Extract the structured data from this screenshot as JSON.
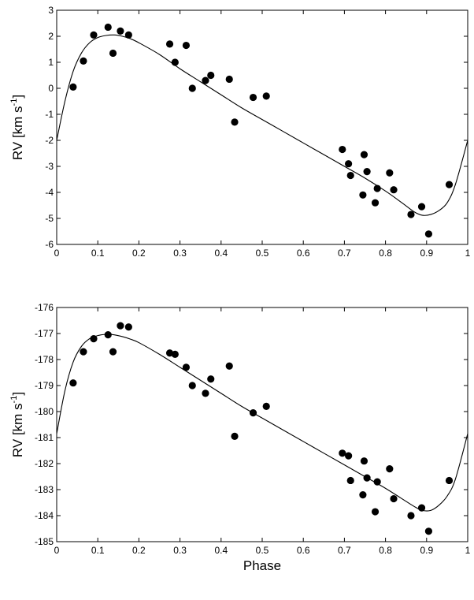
{
  "chart_data": [
    {
      "type": "scatter",
      "xlabel": "",
      "ylabel": {
        "prefix": "RV [km s",
        "superscript": "-1",
        "suffix": "]"
      },
      "xlim": [
        0,
        1
      ],
      "ylim": [
        -6,
        3
      ],
      "x_ticks": [
        0,
        0.1,
        0.2,
        0.3,
        0.4,
        0.5,
        0.6,
        0.7,
        0.8,
        0.9,
        1
      ],
      "x_tick_labels": [
        "0",
        "0.1",
        "0.2",
        "0.3",
        "0.4",
        "0.5",
        "0.6",
        "0.7",
        "0.8",
        "0.9",
        "1"
      ],
      "y_ticks": [
        -6,
        -5,
        -4,
        -3,
        -2,
        -1,
        0,
        1,
        2,
        3
      ],
      "y_tick_labels": [
        "-6",
        "-5",
        "-4",
        "-3",
        "-2",
        "-1",
        "0",
        "1",
        "2",
        "3"
      ],
      "grid": false,
      "series": [
        {
          "kind": "points",
          "x": [
            0.04,
            0.065,
            0.09,
            0.125,
            0.137,
            0.155,
            0.175,
            0.275,
            0.288,
            0.315,
            0.33,
            0.362,
            0.375,
            0.42,
            0.433,
            0.478,
            0.51,
            0.695,
            0.71,
            0.715,
            0.745,
            0.748,
            0.755,
            0.775,
            0.78,
            0.81,
            0.82,
            0.862,
            0.888,
            0.905,
            0.955
          ],
          "y": [
            0.05,
            1.05,
            2.05,
            2.35,
            1.35,
            2.2,
            2.05,
            1.7,
            1.0,
            1.65,
            0.0,
            0.3,
            0.5,
            0.35,
            -1.3,
            -0.35,
            -0.3,
            -2.35,
            -2.9,
            -3.35,
            -4.1,
            -2.55,
            -3.2,
            -4.4,
            -3.85,
            -3.25,
            -3.9,
            -4.85,
            -4.55,
            -5.6,
            -3.7
          ]
        },
        {
          "kind": "curve",
          "x": [
            0,
            0.02,
            0.04,
            0.06,
            0.08,
            0.1,
            0.12,
            0.14,
            0.16,
            0.18,
            0.2,
            0.25,
            0.3,
            0.35,
            0.4,
            0.45,
            0.5,
            0.55,
            0.6,
            0.65,
            0.7,
            0.75,
            0.8,
            0.84,
            0.87,
            0.89,
            0.91,
            0.93,
            0.95,
            0.97,
            1.0
          ],
          "y": [
            -2.0,
            -0.5,
            0.65,
            1.35,
            1.75,
            1.95,
            2.03,
            2.05,
            2.0,
            1.9,
            1.75,
            1.3,
            0.75,
            0.25,
            -0.25,
            -0.75,
            -1.2,
            -1.65,
            -2.1,
            -2.55,
            -3.0,
            -3.45,
            -3.95,
            -4.4,
            -4.75,
            -4.88,
            -4.85,
            -4.7,
            -4.4,
            -3.7,
            -2.0
          ]
        }
      ]
    },
    {
      "type": "scatter",
      "xlabel": "Phase",
      "ylabel": {
        "prefix": "RV [km s",
        "superscript": "-1",
        "suffix": "]"
      },
      "xlim": [
        0,
        1
      ],
      "ylim": [
        -185,
        -176
      ],
      "x_ticks": [
        0,
        0.1,
        0.2,
        0.3,
        0.4,
        0.5,
        0.6,
        0.7,
        0.8,
        0.9,
        1
      ],
      "x_tick_labels": [
        "0",
        "0.1",
        "0.2",
        "0.3",
        "0.4",
        "0.5",
        "0.6",
        "0.7",
        "0.8",
        "0.9",
        "1"
      ],
      "y_ticks": [
        -185,
        -184,
        -183,
        -182,
        -181,
        -180,
        -179,
        -178,
        -177,
        -176
      ],
      "y_tick_labels": [
        "-185",
        "-184",
        "-183",
        "-182",
        "-181",
        "-180",
        "-179",
        "-178",
        "-177",
        "-176"
      ],
      "grid": false,
      "series": [
        {
          "kind": "points",
          "x": [
            0.04,
            0.065,
            0.09,
            0.125,
            0.137,
            0.155,
            0.175,
            0.275,
            0.288,
            0.315,
            0.33,
            0.362,
            0.375,
            0.42,
            0.433,
            0.478,
            0.51,
            0.695,
            0.71,
            0.715,
            0.745,
            0.748,
            0.755,
            0.775,
            0.78,
            0.81,
            0.82,
            0.862,
            0.888,
            0.905,
            0.955
          ],
          "y": [
            -178.9,
            -177.7,
            -177.2,
            -177.05,
            -177.7,
            -176.7,
            -176.75,
            -177.75,
            -177.8,
            -178.3,
            -179.0,
            -179.3,
            -178.75,
            -178.25,
            -180.95,
            -180.05,
            -179.8,
            -181.6,
            -181.7,
            -182.65,
            -183.2,
            -181.9,
            -182.55,
            -183.85,
            -182.7,
            -182.2,
            -183.35,
            -184.0,
            -183.7,
            -184.6,
            -182.65
          ]
        },
        {
          "kind": "curve",
          "x": [
            0,
            0.02,
            0.04,
            0.06,
            0.08,
            0.1,
            0.12,
            0.14,
            0.16,
            0.18,
            0.2,
            0.25,
            0.3,
            0.35,
            0.4,
            0.45,
            0.5,
            0.55,
            0.6,
            0.65,
            0.7,
            0.75,
            0.8,
            0.84,
            0.87,
            0.89,
            0.91,
            0.93,
            0.95,
            0.97,
            1.0
          ],
          "y": [
            -180.85,
            -179.2,
            -178.1,
            -177.5,
            -177.2,
            -177.08,
            -177.03,
            -177.05,
            -177.12,
            -177.22,
            -177.35,
            -177.8,
            -178.3,
            -178.8,
            -179.3,
            -179.8,
            -180.25,
            -180.7,
            -181.15,
            -181.6,
            -182.05,
            -182.5,
            -182.95,
            -183.35,
            -183.65,
            -183.8,
            -183.8,
            -183.6,
            -183.25,
            -182.6,
            -180.85
          ]
        }
      ]
    }
  ]
}
